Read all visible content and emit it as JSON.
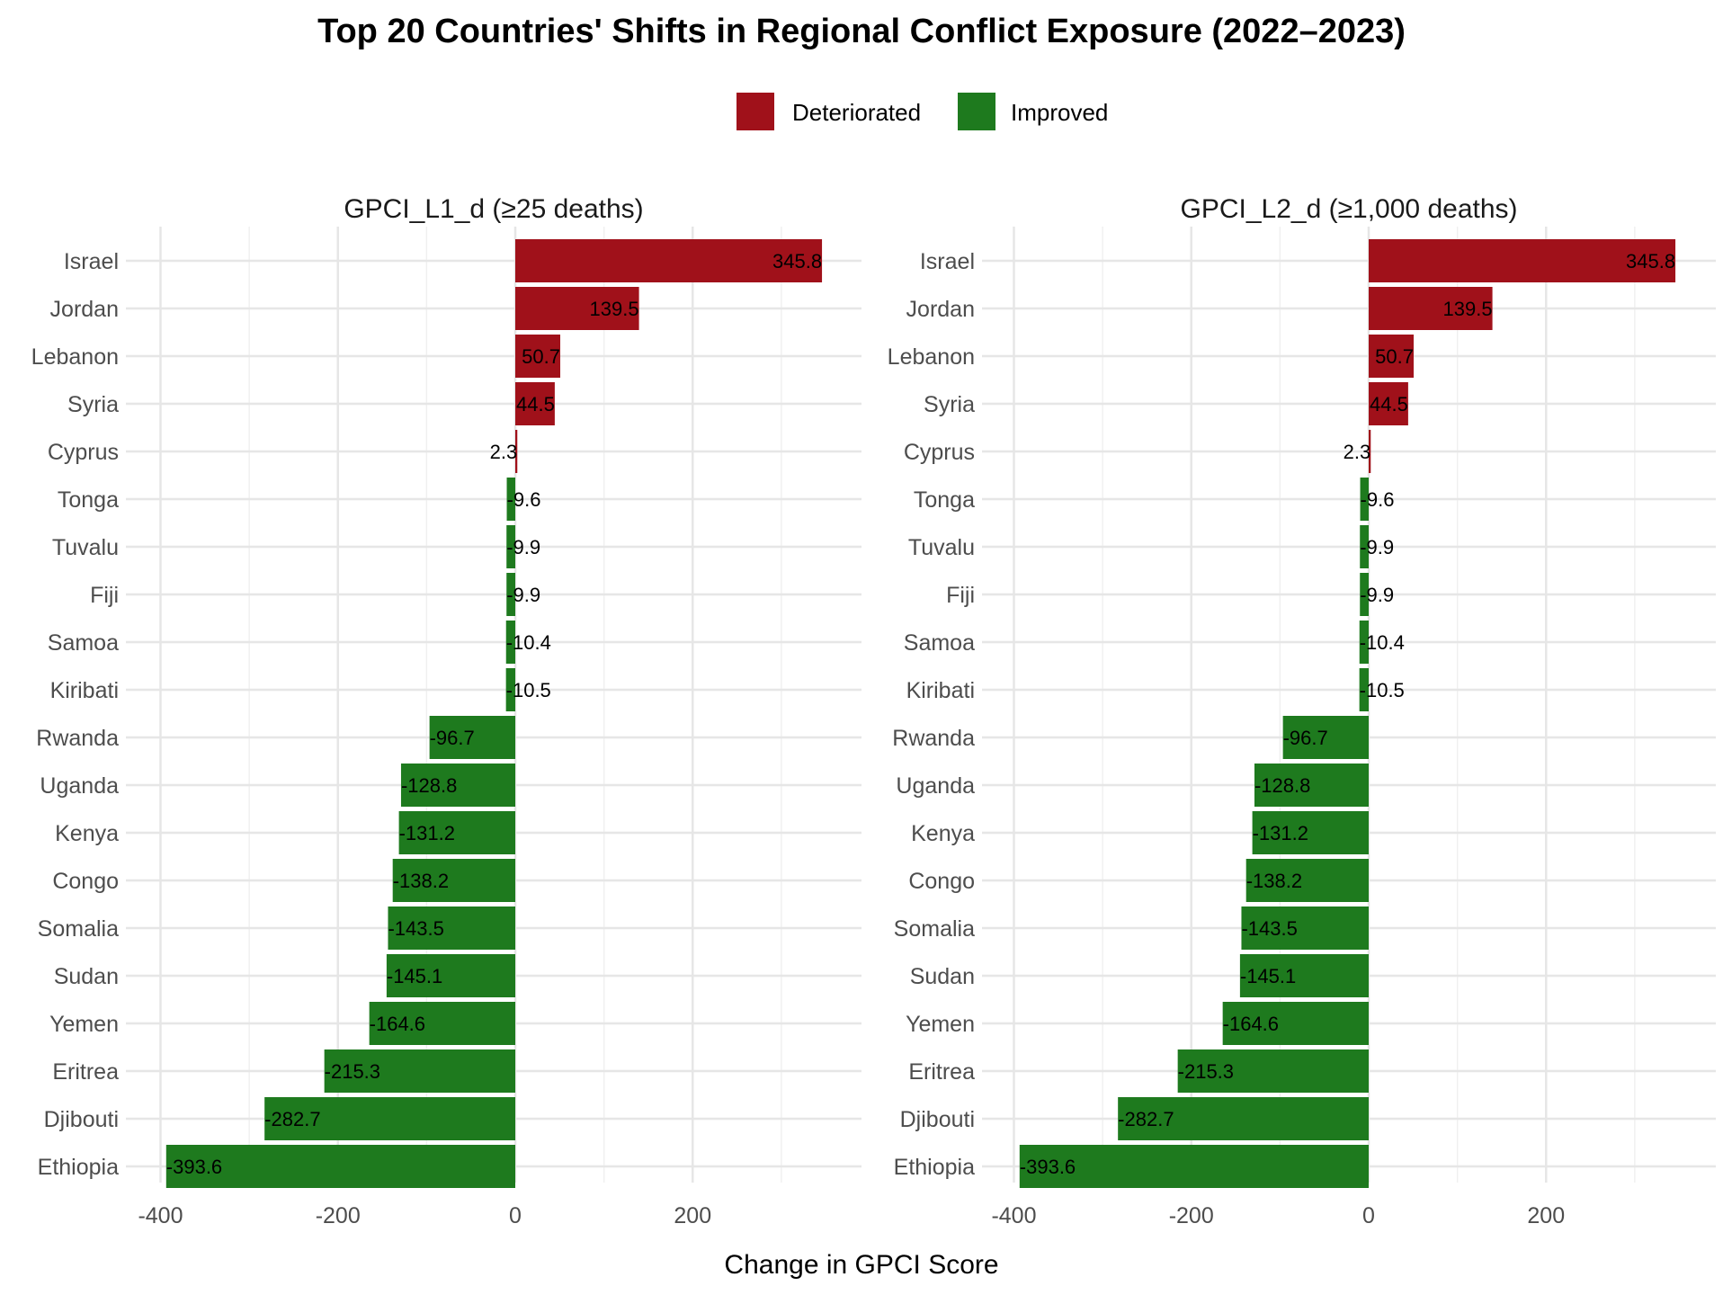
{
  "chart_data": {
    "type": "bar",
    "orientation": "horizontal",
    "title": "Top 20 Countries' Shifts in Regional Conflict Exposure (2022–2023)",
    "xlabel": "Change in GPCI Score",
    "legend": {
      "position": "top",
      "entries": [
        {
          "label": "Deteriorated",
          "color": "#A0111A"
        },
        {
          "label": "Improved",
          "color": "#1E7A1E"
        }
      ]
    },
    "xlim": [
      -420,
      360
    ],
    "xticks": [
      -400,
      -200,
      0,
      200
    ],
    "xtick_labels": [
      "-400",
      "-200",
      "0",
      "200"
    ],
    "grid": true,
    "categories": [
      "Israel",
      "Jordan",
      "Lebanon",
      "Syria",
      "Cyprus",
      "Tonga",
      "Tuvalu",
      "Fiji",
      "Samoa",
      "Kiribati",
      "Rwanda",
      "Uganda",
      "Kenya",
      "Congo",
      "Somalia",
      "Sudan",
      "Yemen",
      "Eritrea",
      "Djibouti",
      "Ethiopia"
    ],
    "panels": [
      {
        "title": "GPCI_L1_d (≥25 deaths)",
        "values": [
          345.8,
          139.5,
          50.7,
          44.5,
          2.3,
          -9.6,
          -9.9,
          -9.9,
          -10.4,
          -10.5,
          -96.7,
          -128.8,
          -131.2,
          -138.2,
          -143.5,
          -145.1,
          -164.6,
          -215.3,
          -282.7,
          -393.6
        ],
        "labels": [
          "345.8",
          "139.5",
          "50.7",
          "44.5",
          "2.3",
          "-9.6",
          "-9.9",
          "-9.9",
          "-10.4",
          "-10.5",
          "-96.7",
          "-128.8",
          "-131.2",
          "-138.2",
          "-143.5",
          "-145.1",
          "-164.6",
          "-215.3",
          "-282.7",
          "-393.6"
        ]
      },
      {
        "title": "GPCI_L2_d (≥1,000 deaths)",
        "values": [
          345.8,
          139.5,
          50.7,
          44.5,
          2.3,
          -9.6,
          -9.9,
          -9.9,
          -10.4,
          -10.5,
          -96.7,
          -128.8,
          -131.2,
          -138.2,
          -143.5,
          -145.1,
          -164.6,
          -215.3,
          -282.7,
          -393.6
        ],
        "labels": [
          "345.8",
          "139.5",
          "50.7",
          "44.5",
          "2.3",
          "-9.6",
          "-9.9",
          "-9.9",
          "-10.4",
          "-10.5",
          "-96.7",
          "-128.8",
          "-131.2",
          "-138.2",
          "-143.5",
          "-145.1",
          "-164.6",
          "-215.3",
          "-282.7",
          "-393.6"
        ]
      }
    ]
  }
}
